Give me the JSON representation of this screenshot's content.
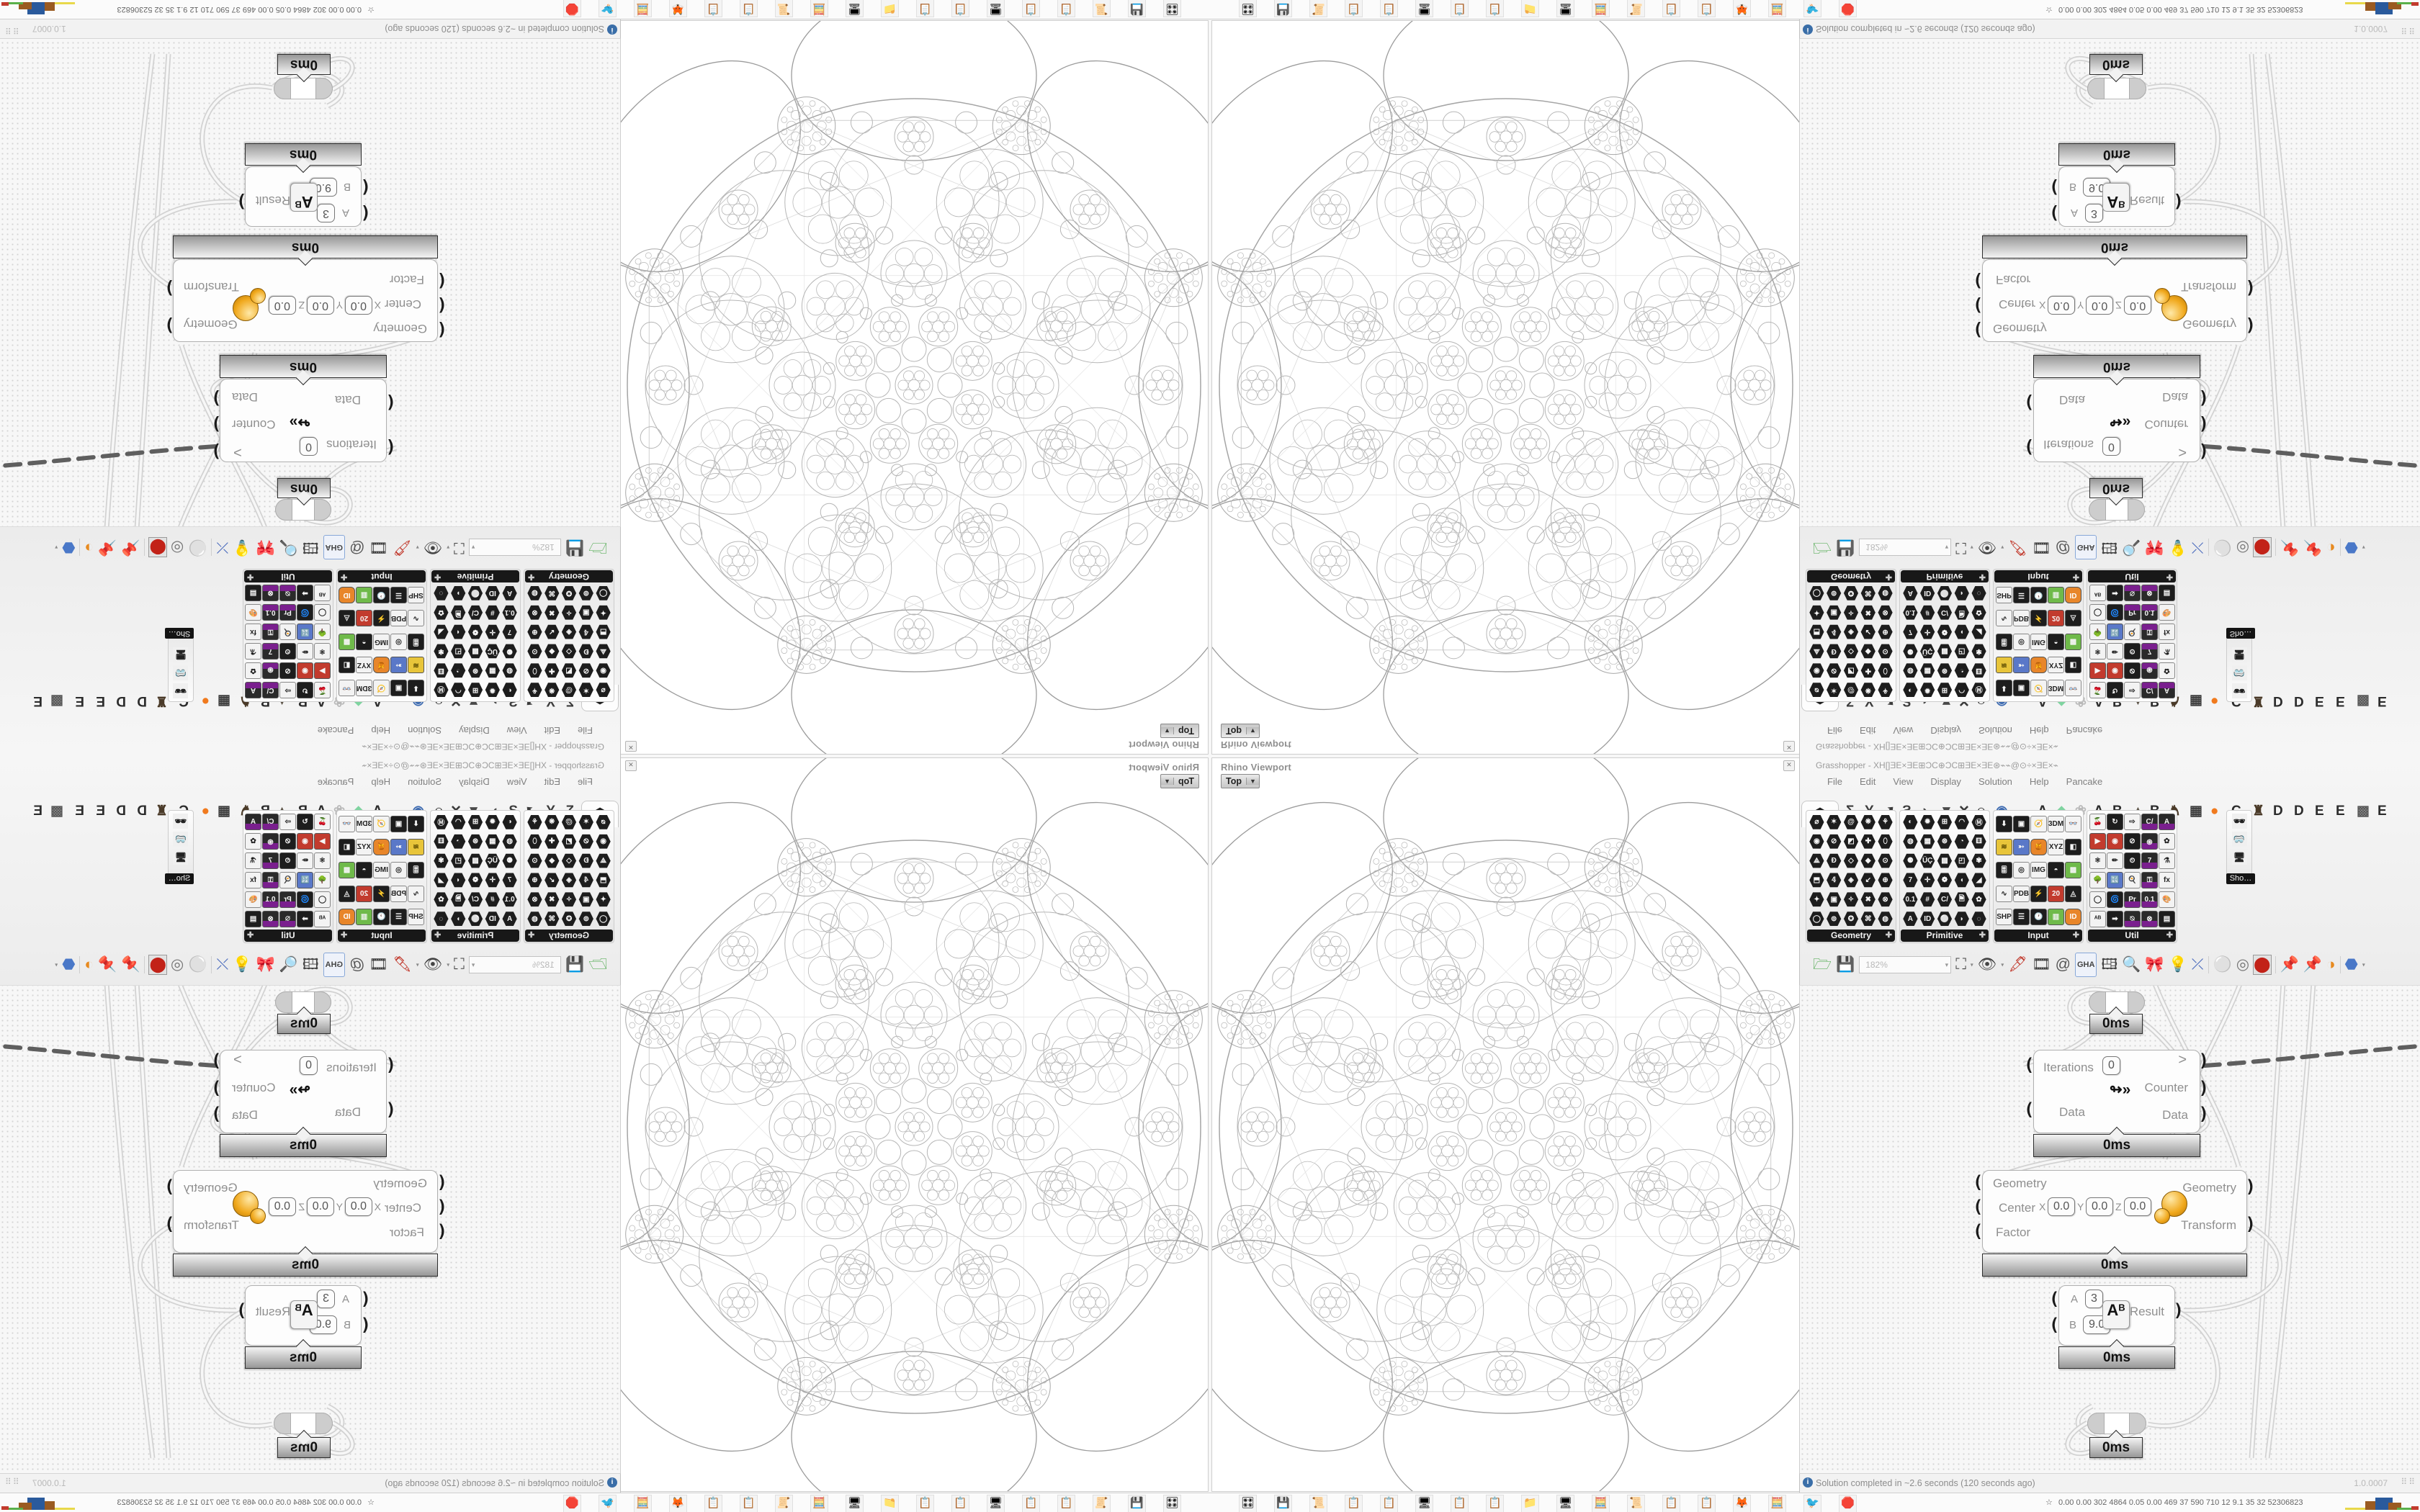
{
  "window": {
    "title": "Grasshopper - XH[]ƎE×ƎE⊞ƆC⊕ƆC⊞ƎE×ƎE⊛⌁⌁@⊙÷×ƎE×⌁",
    "menus": [
      "File",
      "Edit",
      "View",
      "Display",
      "Solution",
      "Help",
      "Pancake"
    ],
    "params_tab_glyph": "⬢",
    "ribbon_tabs": [
      {
        "glyph": "Σ",
        "color": "#3c3c3c"
      },
      {
        "glyph": "Y",
        "color": "#3c3c3c"
      },
      {
        "glyph": "➚",
        "color": "#3c3c3c"
      },
      {
        "glyph": "Ƨ",
        "color": "#3c3c3c"
      },
      {
        "glyph": "◗",
        "color": "#4a4a4a"
      },
      {
        "glyph": "▼",
        "color": "#4a4a4a"
      },
      {
        "glyph": "✕",
        "color": "#3c3c3c"
      },
      {
        "glyph": "℮",
        "color": "#3c3c3c"
      },
      {
        "glyph": "◉",
        "color": "#3c6ab0"
      },
      {
        "glyph": "A",
        "color": "#2c2c2c"
      },
      {
        "glyph": "◆",
        "color": "#7fd4a0"
      },
      {
        "glyph": "❀",
        "color": "#b9b9b9"
      },
      {
        "glyph": "A",
        "color": "#2c2c2c"
      },
      {
        "glyph": "B",
        "color": "#2c2c2c"
      },
      {
        "glyph": "▲",
        "color": "#5a5145"
      },
      {
        "glyph": "B",
        "color": "#2c2c2c"
      },
      {
        "glyph": "♞",
        "color": "#4a3a28"
      },
      {
        "glyph": "▦",
        "color": "#3c3c3c"
      },
      {
        "glyph": "●",
        "color": "#f07a1e"
      },
      {
        "glyph": "C",
        "color": "#2c2c2c"
      },
      {
        "glyph": "♜",
        "color": "#4a3a28"
      },
      {
        "glyph": "D",
        "color": "#2c2c2c"
      },
      {
        "glyph": "D",
        "color": "#2c2c2c"
      },
      {
        "glyph": "E",
        "color": "#2c2c2c"
      },
      {
        "glyph": "E",
        "color": "#2c2c2c"
      },
      {
        "glyph": "▩",
        "color": "#5a5a5a"
      },
      {
        "glyph": "E",
        "color": "#2c2c2c"
      }
    ],
    "palettes": [
      {
        "label": "Geometry",
        "icons": [
          "⌀",
          "✶",
          "@",
          "❋",
          "⚘",
          "◉",
          "⊘",
          "◩",
          "✚",
          "⬯",
          "⟁",
          "Ð",
          "◇",
          "◆",
          "⊙",
          "⬒",
          "𝟜",
          "◈",
          "↙",
          "⊕",
          "✦",
          "▣",
          "✧",
          "✖",
          "⊗",
          "◯",
          "⊚",
          "✪",
          "⌘",
          "◍"
        ]
      },
      {
        "label": "Primitive",
        "icons": [
          "◐",
          "✹",
          "⊞",
          "◠",
          "Ⓜ",
          "◍",
          "▦",
          "⊛",
          "◔",
          "⚅",
          "⚈",
          "ÜÇ",
          "▩",
          "◰",
          "✾",
          "7",
          "✛",
          "❁",
          "◖",
          "◢",
          "0.1",
          "#",
          "C/",
          "🗎",
          "✿",
          "A",
          "ID",
          "⚪",
          "◗",
          "◌"
        ]
      },
      {
        "label": "Input",
        "icons": [
          "⬇|sq",
          "▣|sq",
          "🧭|sq white",
          "3DM|sq white",
          "👓|sq white",
          "≋|sq yellow",
          "➳|sq blue",
          "🍯|sq orange",
          "XYZ|sq white",
          "◧|sq",
          "🎚|sq",
          "◎|sq white",
          "IMG|sq white",
          "◓|sq",
          "▩|sq green",
          "∿|sq white",
          "PDB|sq white",
          "⚡|sq",
          "20|sq red",
          "◬|sq",
          "SHP|sq white",
          "☰|sq",
          "🕐|sq",
          "▥|sq green",
          "ID|sq orange"
        ]
      },
      {
        "label": "Util",
        "icons": [
          "🍒|sq white",
          "↻|sq",
          "⇨|sq white",
          "C/|sq purple",
          "A|sq purple",
          "▶|sq red",
          "◉|sq red",
          "⊘|sq",
          "֍|sq purple",
          "✿|sq white",
          "⚛|sq white",
          "✏|sq white",
          "⏲|sq",
          "7|sq purple",
          "⚗|sq white",
          "🌳|sq white",
          "🔣|sq blue",
          "🍳|sq white",
          "⚿|sq purple",
          "fx|sq white",
          "◯|sq white",
          "🌀|sq",
          "Pr|sq purple",
          "0.1|sq purple",
          "🎨|sq white",
          "ᴬᴮ|sq white",
          "➡|sq",
          "⍉|sq purple",
          "⊗|sq purple",
          "▤|sq"
        ]
      }
    ],
    "mini_panel": {
      "label": "Sho…",
      "icons": [
        "🕶",
        "🥽",
        "🖥"
      ]
    },
    "toolbar": {
      "zoom_value": "182%",
      "icons": [
        {
          "name": "open-file-icon",
          "glyph": "🗁",
          "color": "#3da23d"
        },
        {
          "name": "save-file-icon",
          "glyph": "💾",
          "color": "#2a52b8"
        },
        {
          "name": "zoom-field",
          "field": true
        },
        {
          "name": "zoom-extents-icon",
          "glyph": "⛶",
          "arrow": true
        },
        {
          "name": "preview-eye-icon",
          "glyph": "👁",
          "arrow": true
        },
        {
          "name": "sketch-pen-icon",
          "glyph": "🖋",
          "color": "#c23b2e"
        },
        {
          "name": "projector-icon",
          "glyph": "🎞",
          "color": "#333333"
        },
        {
          "name": "annotation-icon",
          "glyph": "@",
          "color": "#555555"
        },
        {
          "name": "gha-loader-icon",
          "glyph": "GHA",
          "gha": true
        },
        {
          "name": "chart-icon",
          "glyph": "🖽",
          "color": "#444444"
        },
        {
          "name": "search-icon",
          "glyph": "🔍",
          "color": "#335588"
        },
        {
          "name": "gift-help-icon",
          "glyph": "🎀",
          "color": "#e0559c"
        },
        {
          "name": "idea-bulb-icon",
          "glyph": "💡",
          "color": "#7aa7e8"
        },
        {
          "name": "crossed-wires-icon",
          "glyph": "⤫",
          "color": "#4466bb"
        },
        {
          "name": "separator",
          "sep": true
        },
        {
          "name": "sphere-white-icon",
          "glyph": "⚪",
          "color": "#888888"
        },
        {
          "name": "torus-icon",
          "glyph": "◎",
          "color": "#777777"
        },
        {
          "name": "red-material-icon",
          "glyph": "⬤",
          "color": "#c22218",
          "selected": true
        },
        {
          "name": "separator",
          "sep": true
        },
        {
          "name": "pin-teal-icon",
          "glyph": "📌",
          "color": "#2a9a96"
        },
        {
          "name": "pin-green-icon",
          "glyph": "📌",
          "color": "#5ab04a"
        },
        {
          "name": "split-ball-icon",
          "glyph": "◑",
          "color": "#e78a1f"
        },
        {
          "name": "separator",
          "sep": true
        },
        {
          "name": "blue-polyhedron-icon",
          "glyph": "⬣",
          "color": "#4a78c8",
          "arrow": true
        }
      ]
    }
  },
  "viewport_widget": {
    "title": "Rhino Viewport",
    "view_label": "Top",
    "dropdown_arrow": "▼",
    "close_label": "✕"
  },
  "components": {
    "capsule_top_timing": "0ms",
    "loop": {
      "timing_above": "0ms",
      "input_iterations": "Iterations",
      "iterations_value": "0",
      "input_data": "Data",
      "out_gate": ">",
      "out_counter": "Counter",
      "out_data": "Data",
      "icon": "loop-arrow-icon",
      "icon_glyph": "↬»",
      "timing": "0ms"
    },
    "scale": {
      "in_geometry": "Geometry",
      "in_center": "Center",
      "in_factor": "Factor",
      "axis_x": "X",
      "axis_y": "Y",
      "axis_z": "Z",
      "x_value": "0.0",
      "y_value": "0.0",
      "z_value": "0.0",
      "out_geometry": "Geometry",
      "out_transform": "Transform",
      "timing": "0ms"
    },
    "power": {
      "a_label": "A",
      "a_value": "3",
      "b_label": "B",
      "b_value": "9.0",
      "icon_a": "A",
      "icon_b": "B",
      "out_result": "Result",
      "timing": "0ms"
    },
    "capsule_bottom_timing": "0ms"
  },
  "status_bar": {
    "info_icon": "i",
    "message": "Solution completed in ~2.6 seconds (120 seconds ago)",
    "version": "1.0.0007",
    "grip": "⠿⠿"
  },
  "taskbar": {
    "app_icons": [
      "🎛",
      "💾",
      "📜",
      "📋",
      "📋",
      "🖥",
      "📋",
      "📋",
      "📁",
      "🖥",
      "🧮",
      "📜",
      "📋",
      "📋",
      "🦊",
      "🧮",
      "🐦",
      "🛑"
    ],
    "tray_person": "☆",
    "tray_text": "0.00 0.00  302  4864 0.05 0.00  469   37   590  710   12   9.1   35   32  52306823",
    "tray_graph": [
      {
        "color": "#e8d84a",
        "w": 34,
        "h": 3
      },
      {
        "color": "#9a5b22",
        "w": 20,
        "h": 12
      },
      {
        "color": "#2a5a9c",
        "w": 24,
        "h": 17
      },
      {
        "color": "#9a5b22",
        "w": 18,
        "h": 10
      },
      {
        "color": "#59b04a",
        "w": 26,
        "h": 3
      },
      {
        "color": "#c23b2e",
        "w": 10,
        "h": 5
      }
    ]
  }
}
